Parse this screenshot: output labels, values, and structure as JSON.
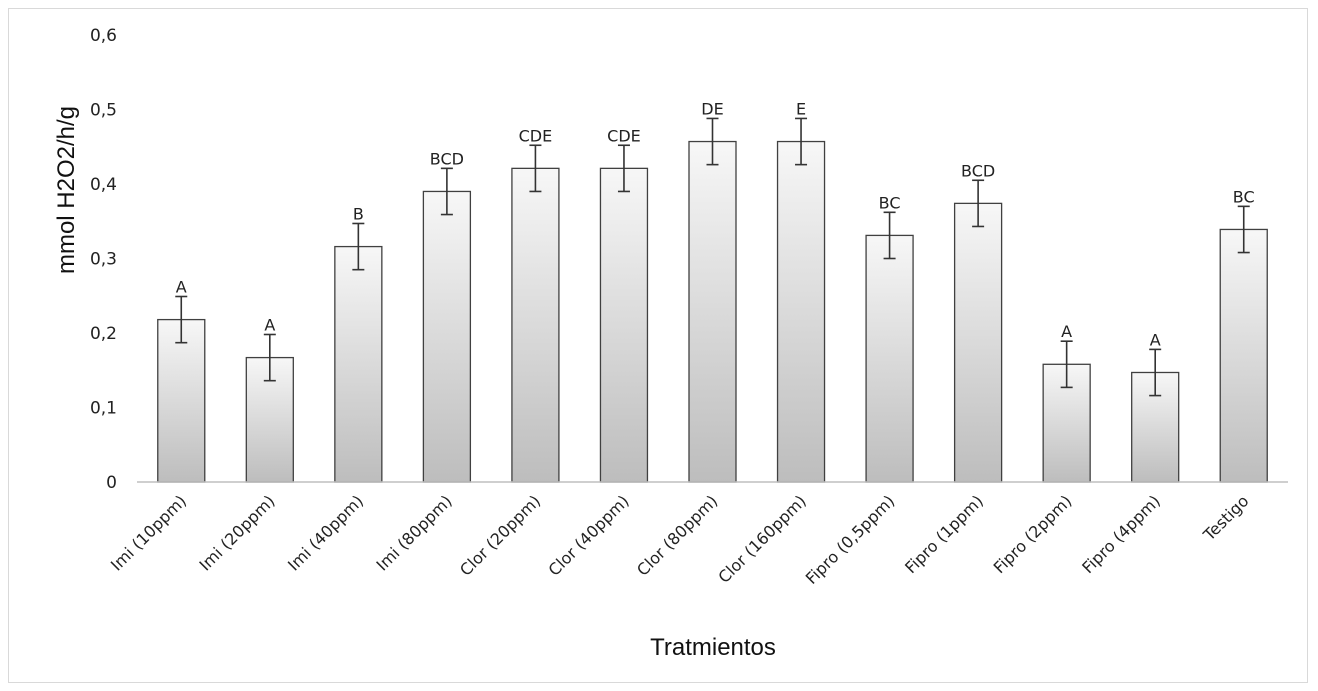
{
  "chart_data": {
    "type": "bar",
    "title": "",
    "xlabel": "Tratmientos",
    "ylabel": "mmol H2O2/h/g",
    "ylim": [
      0,
      0.6
    ],
    "yticks": [
      "0",
      "0,1",
      "0,2",
      "0,3",
      "0,4",
      "0,5",
      "0,6"
    ],
    "grid": false,
    "legend": "none",
    "categories": [
      "Imi (10ppm)",
      "Imi (20ppm)",
      "Imi (40ppm)",
      "Imi (80ppm)",
      "Clor (20ppm)",
      "Clor (40ppm)",
      "Clor (80ppm)",
      "Clor (160ppm)",
      "Fipro (0,5ppm)",
      "Fipro (1ppm)",
      "Fipro (2ppm)",
      "Fipro (4ppm)",
      "Testigo"
    ],
    "values": [
      0.218,
      0.167,
      0.316,
      0.39,
      0.421,
      0.421,
      0.457,
      0.457,
      0.331,
      0.374,
      0.158,
      0.147,
      0.339
    ],
    "error": [
      0.031,
      0.031,
      0.031,
      0.031,
      0.031,
      0.031,
      0.031,
      0.031,
      0.031,
      0.031,
      0.031,
      0.031,
      0.031
    ],
    "letters": [
      "A",
      "A",
      "B",
      "BCD",
      "CDE",
      "CDE",
      "DE",
      "E",
      "BC",
      "BCD",
      "A",
      "A",
      "BC"
    ],
    "colors": {
      "bar_top": "#f7f7f7",
      "bar_bottom": "#bdbdbd",
      "bar_stroke": "#404040",
      "axis": "#bfbfbf",
      "error": "#333333"
    }
  }
}
